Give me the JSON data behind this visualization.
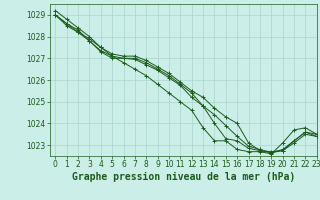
{
  "title": "Graphe pression niveau de la mer (hPa)",
  "background_color": "#cceee8",
  "grid_color": "#aad4cc",
  "line_color": "#1a5c1a",
  "marker_color": "#1a5c1a",
  "xlim": [
    -0.5,
    23
  ],
  "ylim": [
    1022.5,
    1029.5
  ],
  "xticks": [
    0,
    1,
    2,
    3,
    4,
    5,
    6,
    7,
    8,
    9,
    10,
    11,
    12,
    13,
    14,
    15,
    16,
    17,
    18,
    19,
    20,
    21,
    22,
    23
  ],
  "yticks": [
    1023,
    1024,
    1025,
    1026,
    1027,
    1028,
    1029
  ],
  "series": [
    [
      1029.2,
      1028.8,
      1028.4,
      1028.0,
      1027.5,
      1027.1,
      1026.8,
      1026.5,
      1026.2,
      1025.8,
      1025.4,
      1025.0,
      1024.6,
      1023.8,
      1023.2,
      1023.2,
      1022.8,
      1022.7,
      1022.7,
      1022.6,
      1023.1,
      1023.7,
      1023.8,
      1023.5
    ],
    [
      1029.0,
      1028.6,
      1028.2,
      1027.8,
      1027.3,
      1027.0,
      1027.0,
      1027.0,
      1026.8,
      1026.5,
      1026.2,
      1025.8,
      1025.4,
      1024.8,
      1024.0,
      1023.3,
      1023.2,
      1022.85,
      1022.75,
      1022.65,
      1022.8,
      1023.2,
      1023.6,
      1023.5
    ],
    [
      1029.0,
      1028.5,
      1028.2,
      1027.9,
      1027.5,
      1027.2,
      1027.1,
      1027.1,
      1026.9,
      1026.6,
      1026.3,
      1025.9,
      1025.5,
      1025.2,
      1024.7,
      1024.3,
      1024.0,
      1023.1,
      1022.75,
      1022.7,
      1022.75,
      1023.2,
      1023.6,
      1023.4
    ],
    [
      1029.0,
      1028.6,
      1028.3,
      1027.8,
      1027.35,
      1027.1,
      1027.0,
      1026.95,
      1026.7,
      1026.45,
      1026.1,
      1025.75,
      1025.2,
      1024.8,
      1024.4,
      1023.9,
      1023.4,
      1022.95,
      1022.8,
      1022.65,
      1022.75,
      1023.1,
      1023.5,
      1023.4
    ]
  ],
  "title_fontsize": 7,
  "tick_fontsize": 5.5,
  "title_color": "#1a5c1a",
  "tick_color": "#1a5c1a"
}
